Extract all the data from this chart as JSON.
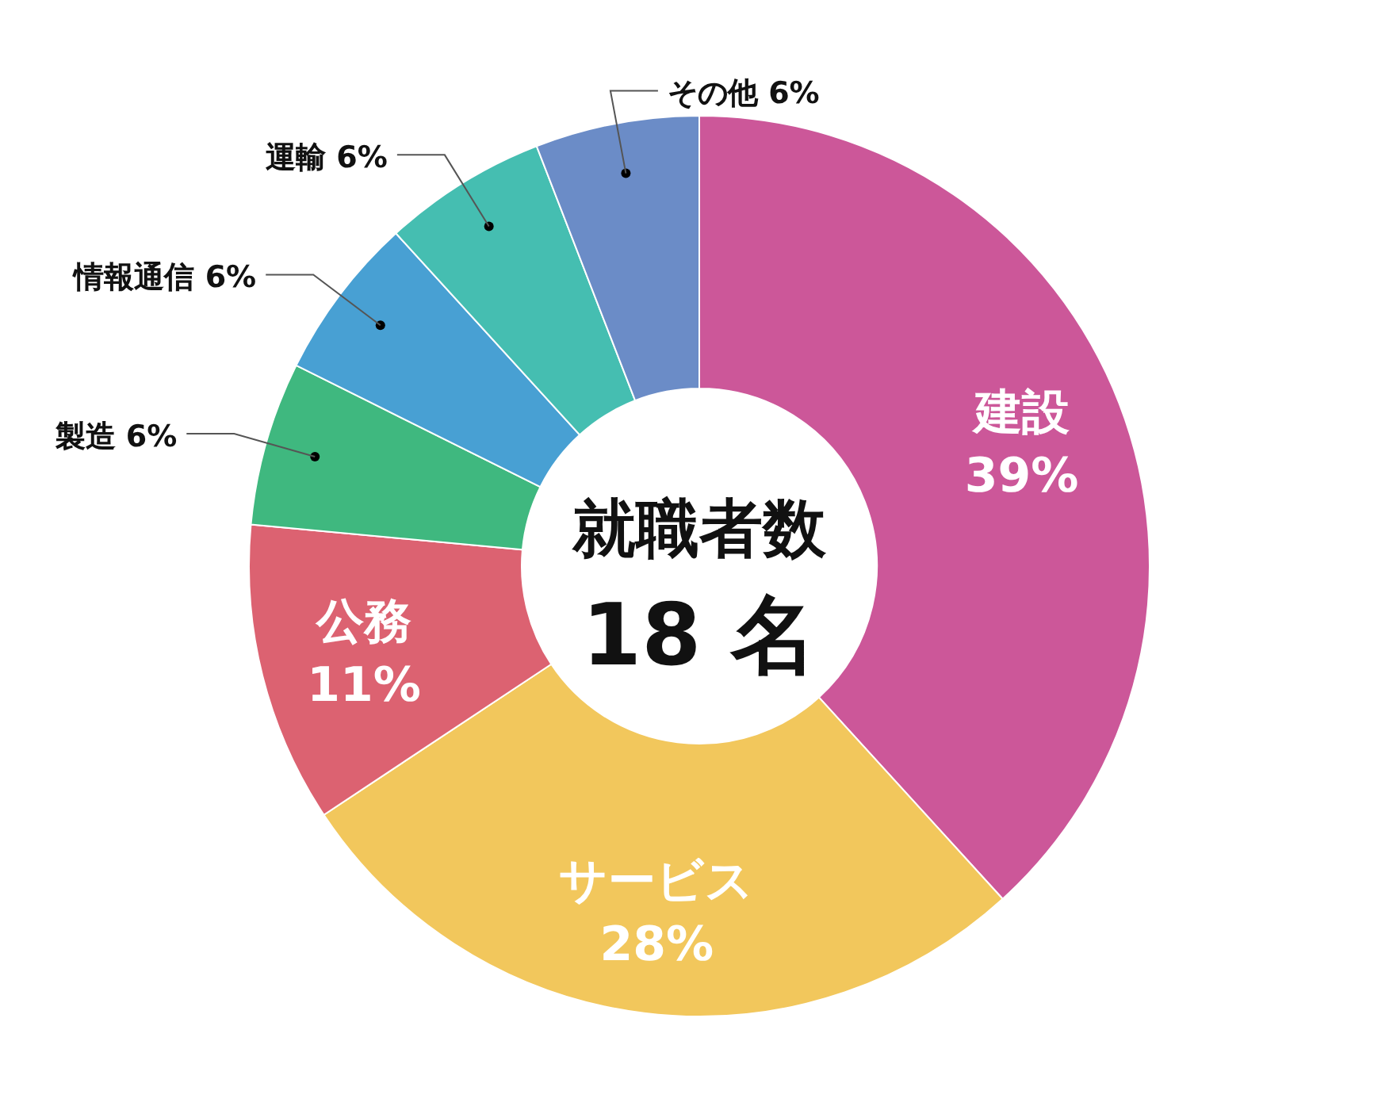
{
  "chart_data": {
    "type": "donut",
    "title": "就職者数",
    "annotations": [
      "18 名"
    ],
    "categories": [
      "建設",
      "サービス",
      "公務",
      "製造",
      "情報通信",
      "運輸",
      "その他"
    ],
    "values": [
      39,
      28,
      11,
      6,
      6,
      6,
      6
    ],
    "value_labels": [
      "39%",
      "28%",
      "11%",
      "6%",
      "6%",
      "6%",
      "6%"
    ],
    "colors": [
      "#cc5799",
      "#f2c75c",
      "#dc6271",
      "#3fb87f",
      "#48a0d3",
      "#45beb1",
      "#6b8cc7"
    ]
  }
}
